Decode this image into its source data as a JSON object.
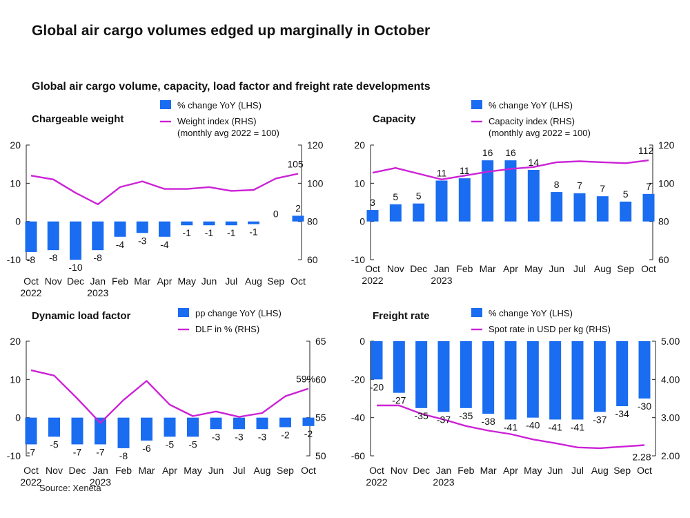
{
  "title": "Global air cargo volumes edged up marginally in October",
  "subtitle": "Global air cargo volume, capacity, load factor and freight rate developments",
  "source": "Source: Xeneta",
  "colors": {
    "bar": "#1a6cf0",
    "line": "#cc22d6",
    "axis": "#222222"
  },
  "chart_data": [
    {
      "type": "bar",
      "title": "Chargeable weight",
      "categories": [
        "Oct",
        "Nov",
        "Dec",
        "Jan",
        "Feb",
        "Mar",
        "Apr",
        "May",
        "Jun",
        "Jul",
        "Aug",
        "Sep",
        "Oct"
      ],
      "years": [
        [
          "Oct",
          "2022"
        ],
        [
          "Jan",
          "2023"
        ]
      ],
      "left_axis": {
        "min": -10,
        "max": 20,
        "ticks": [
          "20",
          "10",
          "0",
          "-10"
        ]
      },
      "right_axis": {
        "min": 60,
        "max": 120,
        "ticks": [
          "120",
          "100",
          "80",
          "60"
        ]
      },
      "series": [
        {
          "name": "% change YoY (LHS)",
          "axis": "left",
          "kind": "bar",
          "values": [
            -8,
            -7.5,
            -10,
            -7.5,
            -4,
            -3,
            -4,
            -1,
            -1,
            -1,
            -0.7,
            0,
            1.5
          ],
          "labels": [
            "-8",
            "-8",
            "-10",
            "-8",
            "-4",
            "-3",
            "-4",
            "-1",
            "-1",
            "-1",
            "-1",
            "0",
            "2"
          ]
        },
        {
          "name": "Weight index (RHS)",
          "name_line2": "(monthly avg 2022 = 100)",
          "axis": "right",
          "kind": "line",
          "values": [
            104,
            102,
            95,
            89,
            98,
            101,
            97,
            97,
            98,
            96,
            96.5,
            102.5,
            105
          ],
          "end_label": "105"
        }
      ]
    },
    {
      "type": "bar",
      "title": "Capacity",
      "categories": [
        "Oct",
        "Nov",
        "Dec",
        "Jan",
        "Feb",
        "Mar",
        "Apr",
        "May",
        "Jun",
        "Jul",
        "Aug",
        "Sep",
        "Oct"
      ],
      "years": [
        [
          "Oct",
          "2022"
        ],
        [
          "Jan",
          "2023"
        ]
      ],
      "left_axis": {
        "min": -10,
        "max": 20,
        "ticks": [
          "20",
          "10",
          "0",
          "-10"
        ]
      },
      "right_axis": {
        "min": 60,
        "max": 120,
        "ticks": [
          "120",
          "100",
          "80",
          "60"
        ]
      },
      "series": [
        {
          "name": "% change YoY (LHS)",
          "axis": "left",
          "kind": "bar",
          "values": [
            3,
            4.5,
            4.7,
            10.7,
            11.3,
            16,
            16,
            13.5,
            7.7,
            7.4,
            6.6,
            5.2,
            7.2
          ],
          "labels": [
            "3",
            "5",
            "5",
            "11",
            "11",
            "16",
            "16",
            "14",
            "8",
            "7",
            "7",
            "5",
            "7"
          ]
        },
        {
          "name": "Capacity index (RHS)",
          "name_line2": "(monthly avg 2022 = 100)",
          "axis": "right",
          "kind": "line",
          "values": [
            105.5,
            108,
            105,
            102,
            104,
            106,
            107.5,
            108.5,
            111,
            111.5,
            111,
            110.5,
            112
          ],
          "end_label": "112"
        }
      ]
    },
    {
      "type": "bar",
      "title": "Dynamic load factor",
      "categories": [
        "Oct",
        "Nov",
        "Dec",
        "Jan",
        "Feb",
        "Mar",
        "Apr",
        "May",
        "Jun",
        "Jul",
        "Aug",
        "Sep",
        "Oct"
      ],
      "years": [
        [
          "Oct",
          "2022"
        ],
        [
          "Jan",
          "2023"
        ]
      ],
      "left_axis": {
        "min": -10,
        "max": 20,
        "ticks": [
          "20",
          "10",
          "0",
          "-10"
        ]
      },
      "right_axis": {
        "min": 50,
        "max": 65,
        "ticks": [
          "65",
          "60",
          "55",
          "50"
        ]
      },
      "series": [
        {
          "name": "pp change YoY (LHS)",
          "axis": "left",
          "kind": "bar",
          "values": [
            -7,
            -5,
            -7,
            -7,
            -8,
            -6,
            -5,
            -5,
            -3,
            -3,
            -3,
            -2.5,
            -2.2
          ],
          "labels": [
            "-7",
            "-5",
            "-7",
            "-7",
            "-8",
            "-6",
            "-5",
            "-5",
            "-3",
            "-3",
            "-3",
            "-2",
            "-2"
          ]
        },
        {
          "name": "DLF in % (RHS)",
          "axis": "right",
          "kind": "line",
          "values": [
            61.2,
            60.5,
            57.5,
            54.3,
            57.3,
            59.8,
            56.7,
            55.2,
            55.8,
            55.1,
            55.6,
            57.8,
            58.8
          ],
          "end_label": "59%"
        }
      ]
    },
    {
      "type": "bar",
      "title": "Freight rate",
      "categories": [
        "Oct",
        "Nov",
        "Dec",
        "Jan",
        "Feb",
        "Mar",
        "Apr",
        "May",
        "Jun",
        "Jul",
        "Aug",
        "Sep",
        "Oct"
      ],
      "years": [
        [
          "Oct",
          "2022"
        ],
        [
          "Jan",
          "2023"
        ]
      ],
      "left_axis": {
        "min": -60,
        "max": 0,
        "ticks": [
          "0",
          "-20",
          "-40",
          "-60"
        ]
      },
      "right_axis": {
        "min": 2.0,
        "max": 5.0,
        "ticks": [
          "5.00",
          "4.00",
          "3.00",
          "2.00"
        ]
      },
      "series": [
        {
          "name": "% change YoY (LHS)",
          "axis": "left",
          "kind": "bar",
          "values": [
            -20,
            -27,
            -35,
            -37,
            -35,
            -38,
            -41,
            -40,
            -41,
            -41,
            -37,
            -34,
            -30
          ],
          "labels": [
            "-20",
            "-27",
            "-35",
            "-37",
            "-35",
            "-38",
            "-41",
            "-40",
            "-41",
            "-41",
            "-37",
            "-34",
            "-30"
          ]
        },
        {
          "name": "Spot rate in USD per kg (RHS)",
          "axis": "right",
          "kind": "line",
          "values": [
            3.32,
            3.32,
            3.1,
            2.95,
            2.78,
            2.66,
            2.57,
            2.43,
            2.33,
            2.22,
            2.2,
            2.24,
            2.28
          ],
          "end_label": "2.28"
        }
      ]
    }
  ]
}
